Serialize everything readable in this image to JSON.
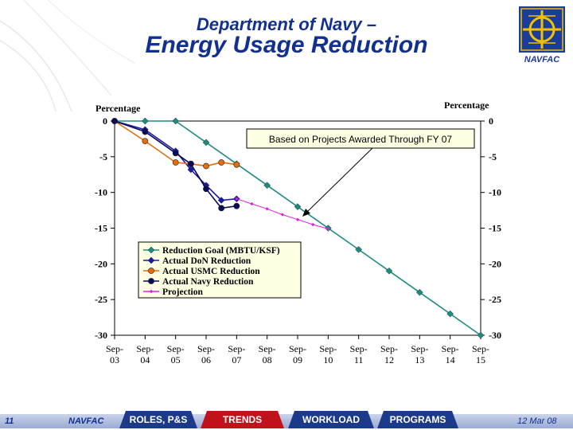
{
  "header": {
    "title_line1": "Department of Navy –",
    "title_line2": "Energy Usage Reduction",
    "logo_text": "NAVFAC"
  },
  "chart_data": {
    "type": "line",
    "y_left_label": "Percentage",
    "y_right_label": "Percentage",
    "ylim": [
      -30,
      0
    ],
    "y_ticks": [
      0,
      -5,
      -10,
      -15,
      -20,
      -25,
      -30
    ],
    "categories": [
      "Sep-03",
      "Sep-04",
      "Sep-05",
      "Sep-06",
      "Sep-07",
      "Sep-08",
      "Sep-09",
      "Sep-10",
      "Sep-11",
      "Sep-12",
      "Sep-13",
      "Sep-14",
      "Sep-15"
    ],
    "x_tick_line1": [
      "Sep-",
      "Sep-",
      "Sep-",
      "Sep-",
      "Sep-",
      "Sep-",
      "Sep-",
      "Sep-",
      "Sep-",
      "Sep-",
      "Sep-",
      "Sep-",
      "Sep-"
    ],
    "x_tick_line2": [
      "03",
      "04",
      "05",
      "06",
      "07",
      "08",
      "09",
      "10",
      "11",
      "12",
      "13",
      "14",
      "15"
    ],
    "annotation": "Based on Projects Awarded  Through FY 07",
    "legend_position": "lower-left",
    "series": [
      {
        "name": "Reduction Goal (MBTU/KSF)",
        "color": "#1e8b82",
        "marker": "diamond",
        "points": [
          [
            0,
            0
          ],
          [
            1,
            0
          ],
          [
            2,
            0
          ],
          [
            3,
            -3
          ],
          [
            4,
            -6
          ],
          [
            5,
            -9
          ],
          [
            6,
            -12
          ],
          [
            7,
            -15
          ],
          [
            8,
            -18
          ],
          [
            9,
            -21
          ],
          [
            10,
            -24
          ],
          [
            11,
            -27
          ],
          [
            12,
            -30
          ]
        ]
      },
      {
        "name": "Actual DoN Reduction",
        "color": "#1a1aa8",
        "marker": "diamond",
        "points": [
          [
            0,
            0
          ],
          [
            1,
            -1.2
          ],
          [
            2,
            -4.2
          ],
          [
            2.5,
            -6.8
          ],
          [
            3,
            -9
          ],
          [
            3.5,
            -11.1
          ],
          [
            4,
            -10.9
          ]
        ]
      },
      {
        "name": "Actual USMC Reduction",
        "color": "#e46c0a",
        "marker": "circle",
        "points": [
          [
            0,
            0
          ],
          [
            1,
            -2.8
          ],
          [
            2,
            -5.8
          ],
          [
            2.5,
            -6
          ],
          [
            3,
            -6.3
          ],
          [
            3.5,
            -5.8
          ],
          [
            4,
            -6.1
          ]
        ]
      },
      {
        "name": "Actual Navy Reduction",
        "color": "#0a0a5a",
        "marker": "circle",
        "points": [
          [
            0,
            0
          ],
          [
            1,
            -1.5
          ],
          [
            2,
            -4.5
          ],
          [
            2.5,
            -6
          ],
          [
            3,
            -9.5
          ],
          [
            3.5,
            -12.2
          ],
          [
            4,
            -11.9
          ]
        ]
      },
      {
        "name": "Projection",
        "color": "#e020e0",
        "marker": "small-diamond",
        "points": [
          [
            4,
            -10.9
          ],
          [
            4.5,
            -11.6
          ],
          [
            5,
            -12.3
          ],
          [
            5.5,
            -13.1
          ],
          [
            6,
            -13.8
          ],
          [
            6.5,
            -14.5
          ],
          [
            7,
            -15.1
          ]
        ]
      }
    ]
  },
  "footer": {
    "page_number": "11",
    "org": "NAVFAC",
    "date": "12 Mar 08",
    "tabs": [
      {
        "label": "ROLES, P&S",
        "active": false
      },
      {
        "label": "TRENDS",
        "active": true
      },
      {
        "label": "WORKLOAD",
        "active": false
      },
      {
        "label": "PROGRAMS",
        "active": false
      }
    ]
  }
}
